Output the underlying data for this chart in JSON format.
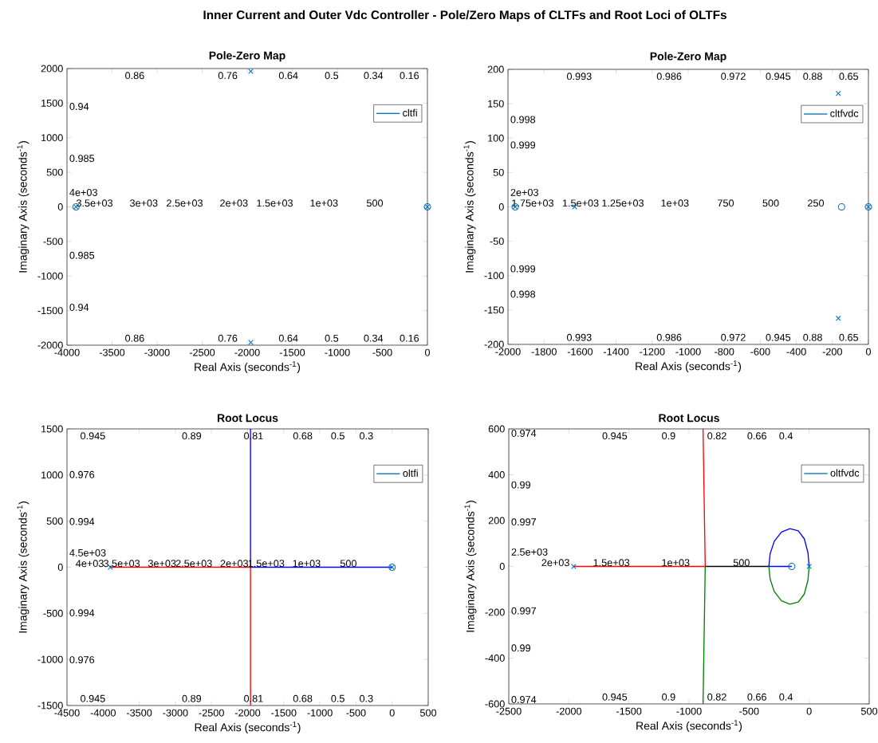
{
  "chart_data": [
    {
      "type": "other",
      "title": "Inner Current and Outer Vdc Controller - Pole/Zero Maps of CLTFs and Root Loci of OLTFs"
    },
    {
      "type": "scatter",
      "title": "Pole-Zero Map",
      "xlabel": "Real Axis (seconds$^{-1}$)",
      "ylabel": "Imaginary Axis (seconds$^{-1}$)",
      "xlim": [
        -4000,
        0
      ],
      "ylim": [
        -2000,
        2000
      ],
      "xticks": [
        -4000,
        -3500,
        -3000,
        -2500,
        -2000,
        -1500,
        -1000,
        -500,
        0
      ],
      "yticks": [
        -2000,
        -1500,
        -1000,
        -500,
        0,
        500,
        1000,
        1500,
        2000
      ],
      "legend": "top right",
      "series": [
        {
          "type": "scatter",
          "name": "cltfi",
          "color": "#0072bd",
          "marker": "cross",
          "x": [
            -3900,
            -1960,
            -1960,
            0
          ],
          "values": [
            0,
            1960,
            -1960,
            0
          ]
        },
        {
          "type": "scatter",
          "color": "#0072bd",
          "marker": "circle",
          "x": [
            -3900,
            0
          ],
          "values": [
            0,
            0
          ]
        }
      ],
      "annotations": [
        "0.86",
        "0.76",
        "0.64",
        "0.5",
        "0.34",
        "0.16",
        "0.94",
        "0.985",
        "0.985",
        "0.94",
        "0.86",
        "0.76",
        "0.64",
        "0.5",
        "0.34",
        "0.16",
        "4e+03",
        "3.5e+03",
        "3e+03",
        "2.5e+03",
        "2e+03",
        "1.5e+03",
        "1e+03",
        "500"
      ]
    },
    {
      "type": "scatter",
      "title": "Pole-Zero Map",
      "xlabel": "Real Axis (seconds$^{-1}$)",
      "ylabel": "Imaginary Axis (seconds$^{-1}$)",
      "xlim": [
        -2000,
        0
      ],
      "ylim": [
        -200,
        200
      ],
      "xticks": [
        -2000,
        -1800,
        -1600,
        -1400,
        -1200,
        -1000,
        -800,
        -600,
        -400,
        -200,
        0
      ],
      "yticks": [
        -200,
        -150,
        -100,
        -50,
        0,
        50,
        100,
        150,
        200
      ],
      "legend": "top right",
      "series": [
        {
          "type": "scatter",
          "name": "cltfvdc",
          "color": "#0072bd",
          "marker": "cross",
          "x": [
            -1960,
            -1630,
            -167,
            -167,
            0
          ],
          "values": [
            0,
            0,
            165,
            -162,
            0
          ]
        },
        {
          "type": "scatter",
          "color": "#0072bd",
          "marker": "circle",
          "x": [
            -1960,
            -149,
            0
          ],
          "values": [
            0,
            0,
            0
          ]
        }
      ],
      "annotations": [
        "0.993",
        "0.986",
        "0.972",
        "0.945",
        "0.88",
        "0.65",
        "0.998",
        "0.999",
        "0.999",
        "0.998",
        "0.993",
        "0.986",
        "0.972",
        "0.945",
        "0.88",
        "0.65",
        "2e+03",
        "1.75e+03",
        "1.5e+03",
        "1.25e+03",
        "1e+03",
        "750",
        "500",
        "250"
      ]
    },
    {
      "type": "line",
      "title": "Root Locus",
      "xlabel": "Real Axis (seconds$^{-1}$)",
      "ylabel": "Imaginary Axis (seconds$^{-1}$)",
      "xlim": [
        -4500,
        500
      ],
      "ylim": [
        -1500,
        1500
      ],
      "xticks": [
        -4500,
        -4000,
        -3500,
        -3000,
        -2500,
        -2000,
        -1500,
        -1000,
        -500,
        0,
        500
      ],
      "yticks": [
        -1500,
        -1000,
        -500,
        0,
        500,
        1000,
        1500
      ],
      "legend": "top right",
      "series": [
        {
          "type": "line",
          "color": "#ff0000",
          "x": [
            -3900,
            -1960,
            -1960
          ],
          "values": [
            0,
            0,
            -1500
          ]
        },
        {
          "type": "line",
          "color": "#0000ff",
          "x": [
            0,
            -1960,
            -1960
          ],
          "values": [
            0,
            0,
            1500
          ]
        },
        {
          "type": "scatter",
          "name": "oltfi",
          "color": "#0072bd",
          "marker": "cross",
          "x": [
            -3900,
            0
          ],
          "values": [
            0,
            0
          ]
        },
        {
          "type": "scatter",
          "color": "#0072bd",
          "marker": "circle",
          "x": [
            0
          ],
          "values": [
            0
          ]
        }
      ],
      "annotations": [
        "0.945",
        "0.89",
        "0.81",
        "0.68",
        "0.5",
        "0.3",
        "0.976",
        "0.994",
        "0.994",
        "0.976",
        "0.945",
        "0.89",
        "0.81",
        "0.68",
        "0.5",
        "0.3",
        "4.5e+03",
        "4e+03",
        "3.5e+03",
        "3e+03",
        "2.5e+03",
        "2e+03",
        "1.5e+03",
        "1e+03",
        "500"
      ]
    },
    {
      "type": "line",
      "title": "Root Locus",
      "xlabel": "Real Axis (seconds$^{-1}$)",
      "ylabel": "Imaginary Axis (seconds$^{-1}$)",
      "xlim": [
        -2500,
        500
      ],
      "ylim": [
        -600,
        600
      ],
      "xticks": [
        -2500,
        -2000,
        -1500,
        -1000,
        -500,
        0,
        500
      ],
      "yticks": [
        -600,
        -400,
        -200,
        0,
        200,
        400,
        600
      ],
      "legend": "top right",
      "series": [
        {
          "type": "line",
          "color": "#000000",
          "x": [
            -865,
            -335
          ],
          "values": [
            0,
            0
          ]
        },
        {
          "type": "line",
          "color": "#ff0000",
          "x": [
            -1960,
            -865,
            -883
          ],
          "values": [
            0,
            0,
            600
          ]
        },
        {
          "type": "line",
          "color": "#0000ff",
          "x": [
            0,
            -10,
            -40,
            -90,
            -160,
            -230,
            -290,
            -325,
            -335,
            -145
          ],
          "values": [
            0,
            60,
            120,
            155,
            165,
            150,
            110,
            55,
            0,
            0
          ]
        },
        {
          "type": "line",
          "color": "#008000",
          "x": [
            0,
            -10,
            -40,
            -90,
            -160,
            -230,
            -290,
            -325,
            -335,
            -600,
            -865,
            -883
          ],
          "values": [
            0,
            -60,
            -120,
            -155,
            -165,
            -150,
            -110,
            -55,
            0,
            null,
            0,
            -600
          ]
        },
        {
          "type": "scatter",
          "name": "oltfvdc",
          "color": "#0072bd",
          "marker": "cross",
          "x": [
            -1960,
            0
          ],
          "values": [
            0,
            0
          ]
        },
        {
          "type": "scatter",
          "color": "#0072bd",
          "marker": "circle",
          "x": [
            -145
          ],
          "values": [
            0
          ]
        }
      ],
      "annotations": [
        "0.945",
        "0.9",
        "0.82",
        "0.66",
        "0.4",
        "0.974",
        "0.99",
        "0.997",
        "0.997",
        "0.99",
        "0.974",
        "0.945",
        "0.9",
        "0.82",
        "0.66",
        "0.4",
        "2.5e+03",
        "2e+03",
        "1.5e+03",
        "1e+03",
        "500"
      ]
    }
  ]
}
